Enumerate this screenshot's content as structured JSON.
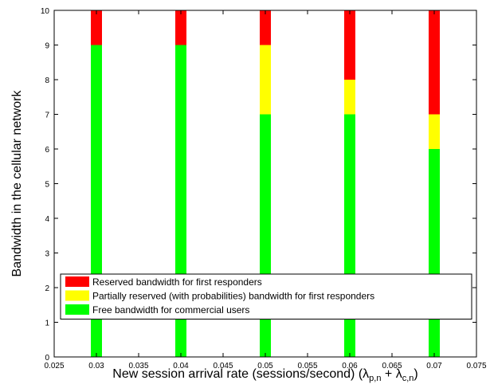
{
  "chart_data": {
    "type": "bar",
    "stacked": true,
    "xlabel": "New session arrival rate (sessions/second)",
    "xlabel_formula": {
      "open": " (λ",
      "sub1": "p,n",
      "plus": " + λ",
      "sub2": "c,n",
      "close": ")"
    },
    "ylabel": "Bandwidth in the cellular network",
    "xlim": [
      0.025,
      0.075
    ],
    "ylim": [
      0,
      10
    ],
    "x_ticks": [
      "0.025",
      "0.03",
      "0.035",
      "0.04",
      "0.045",
      "0.05",
      "0.055",
      "0.06",
      "0.065",
      "0.07",
      "0.075"
    ],
    "y_ticks": [
      "0",
      "1",
      "2",
      "3",
      "4",
      "5",
      "6",
      "7",
      "8",
      "9",
      "10"
    ],
    "x": [
      0.03,
      0.04,
      0.05,
      0.06,
      0.07
    ],
    "series": [
      {
        "name": "Free bandwidth for commercial users",
        "color": "#00ff00",
        "values": [
          9,
          9,
          7,
          7,
          6
        ]
      },
      {
        "name": "Partially  reserved (with probabilities) bandwidth for first responders",
        "color": "#ffff00",
        "values": [
          0,
          0,
          2,
          1,
          1
        ]
      },
      {
        "name": "Reserved bandwidth for first responders",
        "color": "#ff0000",
        "values": [
          1,
          1,
          1,
          2,
          3
        ]
      }
    ],
    "legend_order": [
      2,
      1,
      0
    ],
    "legend_position": "lower-left",
    "grid": false
  }
}
